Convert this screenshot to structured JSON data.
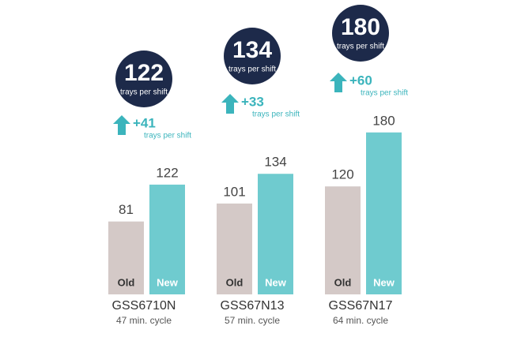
{
  "chart_data": {
    "type": "bar",
    "categories": [
      "GSS6710N",
      "GSS67N13",
      "GSS67N17"
    ],
    "subcategories": [
      "47 min. cycle",
      "57 min. cycle",
      "64 min. cycle"
    ],
    "series": [
      {
        "name": "Old",
        "color": "#d4c9c7",
        "values": [
          81,
          101,
          120
        ]
      },
      {
        "name": "New",
        "color": "#6fcbcf",
        "values": [
          122,
          134,
          180
        ]
      }
    ],
    "unit_label": "trays per shift",
    "gains": {
      "values": [
        41,
        33,
        60
      ],
      "value_labels": [
        "+41",
        "+33",
        "+60"
      ],
      "color": "#3bb4bc"
    },
    "badge_color": "#1d2a4a"
  }
}
